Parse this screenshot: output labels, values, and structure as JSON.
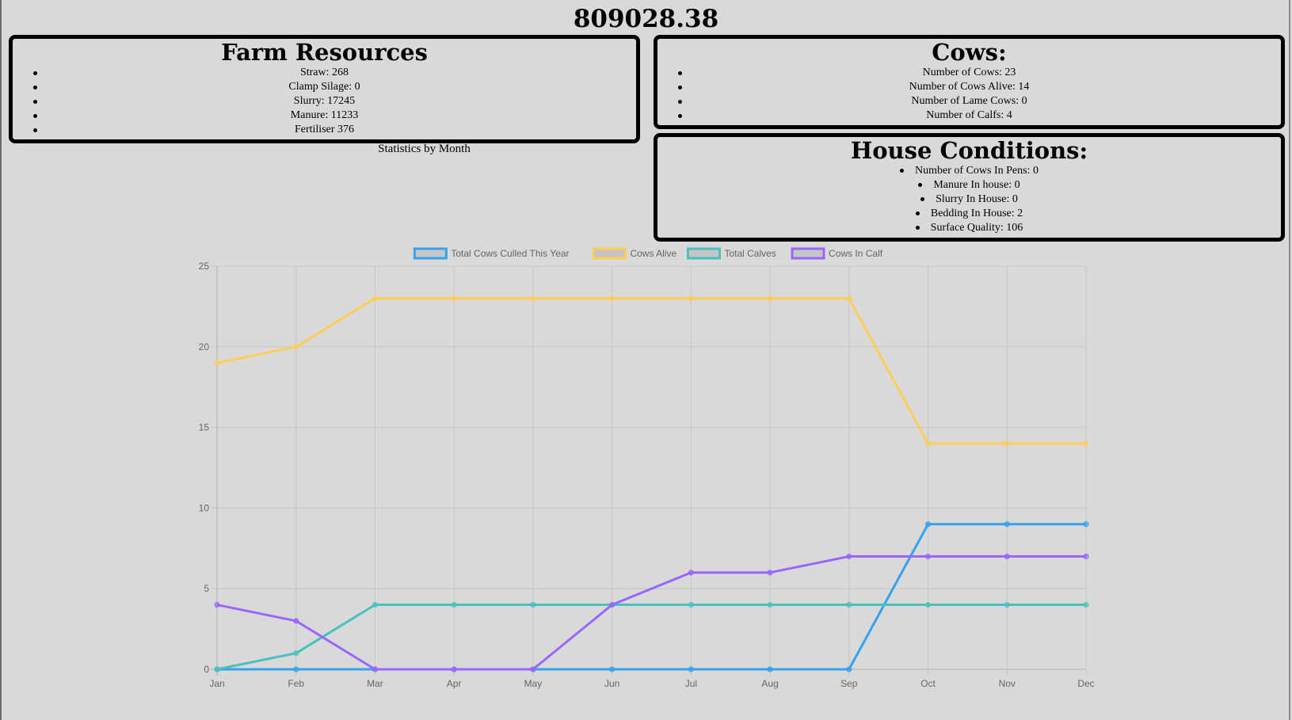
{
  "header": {
    "title": "809028.38"
  },
  "farm_resources": {
    "title": "Farm Resources",
    "items": [
      "Straw: 268",
      "Clamp Silage: 0",
      "Slurry: 17245",
      "Manure: 11233",
      "Fertiliser 376"
    ]
  },
  "cows": {
    "title": "Cows:",
    "items": [
      "Number of Cows: 23",
      "Number of Cows Alive: 14",
      "Number of Lame Cows: 0",
      "Number of Calfs: 4"
    ]
  },
  "house_conditions": {
    "title": "House Conditions:",
    "items": [
      "Number of Cows In Pens: 0",
      "Manure In house: 0",
      "Slurry In House: 0",
      "Bedding In House: 2",
      "Surface Quality: 106"
    ]
  },
  "chart_caption": "Statistics by Month",
  "colors": {
    "background": "#d9d9d9",
    "culled": "#36a2eb",
    "alive": "#ffcd56",
    "calves": "#4bc0c0",
    "in_calf": "#9966ff"
  },
  "chart_data": {
    "type": "line",
    "title": "",
    "xlabel": "",
    "ylabel": "",
    "categories": [
      "Jan",
      "Feb",
      "Mar",
      "Apr",
      "May",
      "Jun",
      "Jul",
      "Aug",
      "Sep",
      "Oct",
      "Nov",
      "Dec"
    ],
    "ylim": [
      0,
      25
    ],
    "yticks": [
      0,
      5,
      10,
      15,
      20,
      25
    ],
    "grid": true,
    "legend": "top",
    "series": [
      {
        "name": "Total Cows Culled This Year",
        "color": "#36a2eb",
        "values": [
          0,
          0,
          0,
          0,
          0,
          0,
          0,
          0,
          0,
          9,
          9,
          9
        ]
      },
      {
        "name": "Cows Alive",
        "color": "#ffcd56",
        "values": [
          19,
          20,
          23,
          23,
          23,
          23,
          23,
          23,
          23,
          14,
          14,
          14
        ]
      },
      {
        "name": "Total Calves",
        "color": "#4bc0c0",
        "values": [
          0,
          1,
          4,
          4,
          4,
          4,
          4,
          4,
          4,
          4,
          4,
          4
        ]
      },
      {
        "name": "Cows In Calf",
        "color": "#9966ff",
        "values": [
          4,
          3,
          0,
          0,
          0,
          4,
          6,
          6,
          7,
          7,
          7,
          7
        ]
      }
    ]
  }
}
